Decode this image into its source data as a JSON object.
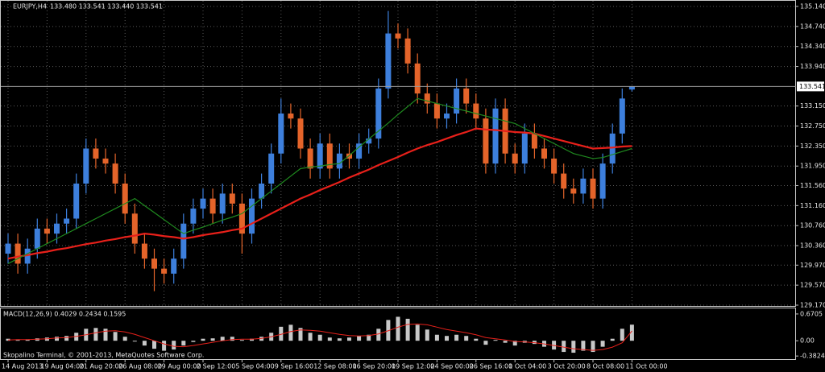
{
  "chart_data": [
    {
      "type": "candlestick",
      "title": "EURJPY,H4",
      "subtitle": "133.480 133.541 133.440 133.541",
      "categories": [
        "14 Aug 2013",
        null,
        null,
        null,
        "19 Aug 04:00",
        null,
        null,
        null,
        "21 Aug 20:00",
        null,
        null,
        null,
        "26 Aug 08:00",
        null,
        null,
        null,
        "29 Aug 00:00",
        null,
        null,
        null,
        "2 Sep 12:00",
        null,
        null,
        null,
        "5 Sep 04:00",
        null,
        null,
        null,
        "9 Sep 16:00",
        null,
        null,
        null,
        "12 Sep 08:00",
        null,
        null,
        null,
        "16 Sep 20:00",
        null,
        null,
        null,
        "19 Sep 12:00",
        null,
        null,
        null,
        "24 Sep 00:00",
        null,
        null,
        null,
        "26 Sep 16:00",
        null,
        null,
        null,
        "1 Oct 04:00",
        null,
        null,
        null,
        "3 Oct 20:00",
        null,
        null,
        null,
        "8 Oct 08:00",
        null,
        null,
        null,
        "11 Oct 00:00"
      ],
      "open": [
        130.2,
        130.4,
        130.0,
        130.3,
        130.7,
        130.6,
        130.8,
        130.9,
        131.6,
        132.3,
        132.1,
        132.0,
        131.6,
        131.0,
        130.4,
        130.1,
        129.9,
        129.8,
        130.1,
        130.8,
        131.1,
        131.3,
        131.0,
        131.4,
        131.2,
        130.6,
        131.3,
        131.6,
        132.2,
        133.0,
        132.9,
        132.3,
        131.9,
        132.4,
        131.9,
        132.2,
        132.1,
        132.4,
        132.5,
        133.5,
        134.6,
        134.5,
        134.0,
        133.4,
        133.2,
        132.9,
        133.0,
        133.5,
        133.2,
        132.9,
        132.0,
        133.1,
        132.2,
        132.0,
        132.6,
        132.3,
        132.1,
        131.8,
        131.5,
        131.4,
        131.7,
        131.3,
        132.0,
        132.6,
        133.48
      ],
      "high": [
        130.6,
        130.6,
        130.5,
        130.9,
        130.9,
        131.0,
        131.1,
        131.8,
        132.5,
        132.5,
        132.3,
        132.2,
        131.8,
        131.2,
        130.6,
        130.3,
        130.1,
        130.3,
        131.0,
        131.3,
        131.5,
        131.5,
        131.6,
        131.6,
        131.4,
        131.5,
        131.8,
        132.4,
        133.3,
        133.2,
        133.1,
        132.5,
        132.6,
        132.6,
        132.4,
        132.4,
        132.6,
        132.7,
        133.7,
        135.05,
        134.8,
        134.7,
        134.2,
        133.6,
        133.4,
        133.2,
        133.7,
        133.7,
        133.4,
        133.1,
        133.3,
        133.3,
        132.4,
        132.8,
        132.8,
        132.5,
        132.3,
        132.0,
        131.7,
        131.9,
        131.9,
        132.2,
        132.8,
        133.5,
        133.541
      ],
      "low": [
        130.0,
        129.8,
        129.8,
        130.1,
        130.4,
        130.4,
        130.6,
        130.7,
        131.4,
        131.9,
        131.8,
        131.4,
        130.8,
        130.2,
        129.9,
        129.45,
        129.6,
        129.6,
        129.9,
        130.6,
        130.9,
        130.8,
        130.8,
        131.0,
        130.2,
        130.4,
        131.1,
        131.4,
        132.0,
        132.7,
        132.1,
        131.7,
        131.7,
        131.7,
        131.7,
        131.9,
        131.9,
        132.2,
        132.3,
        133.3,
        134.3,
        133.8,
        133.2,
        133.0,
        132.7,
        132.7,
        132.8,
        133.0,
        132.7,
        131.8,
        131.8,
        132.0,
        131.8,
        131.8,
        132.1,
        131.9,
        131.6,
        131.3,
        131.2,
        131.2,
        131.1,
        131.1,
        131.8,
        132.4,
        133.44
      ],
      "close": [
        130.4,
        130.0,
        130.3,
        130.7,
        130.6,
        130.8,
        130.9,
        131.6,
        132.3,
        132.1,
        132.0,
        131.6,
        131.0,
        130.4,
        130.1,
        129.9,
        129.8,
        130.1,
        130.8,
        131.1,
        131.3,
        131.0,
        131.4,
        131.2,
        130.6,
        131.3,
        131.6,
        132.2,
        133.0,
        132.9,
        132.3,
        131.9,
        132.4,
        131.9,
        132.2,
        132.1,
        132.4,
        132.5,
        133.5,
        134.6,
        134.5,
        134.0,
        133.4,
        133.2,
        132.9,
        133.0,
        133.5,
        133.2,
        132.9,
        132.0,
        133.1,
        132.2,
        132.0,
        132.6,
        132.3,
        132.1,
        131.8,
        131.5,
        131.4,
        131.7,
        131.3,
        132.0,
        132.6,
        133.3,
        133.541
      ],
      "up_color": "#3d7fdc",
      "down_color": "#e4642a",
      "lines": [
        {
          "color": "#e8201a",
          "values": [
            130.1,
            130.14,
            130.17,
            130.21,
            130.24,
            130.28,
            130.31,
            130.35,
            130.39,
            130.42,
            130.46,
            130.49,
            130.53,
            130.56,
            130.6,
            130.58,
            130.55,
            130.53,
            130.5,
            130.53,
            130.57,
            130.6,
            130.63,
            130.67,
            130.7,
            130.8,
            130.9,
            131.0,
            131.1,
            131.2,
            131.3,
            131.38,
            131.47,
            131.55,
            131.63,
            131.72,
            131.8,
            131.88,
            131.97,
            132.05,
            132.13,
            132.22,
            132.3,
            132.37,
            132.43,
            132.5,
            132.57,
            132.63,
            132.7,
            132.68,
            132.67,
            132.65,
            132.63,
            132.62,
            132.6,
            132.55,
            132.5,
            132.45,
            132.4,
            132.35,
            132.3,
            132.31,
            132.32,
            132.34,
            132.35
          ]
        },
        {
          "color": "#1f8a1f",
          "values": [
            130.0,
            130.1,
            130.2,
            130.3,
            130.4,
            130.5,
            130.6,
            130.7,
            130.8,
            130.9,
            131.0,
            131.1,
            131.2,
            131.3,
            131.16,
            131.02,
            130.88,
            130.74,
            130.6,
            130.67,
            130.73,
            130.8,
            130.87,
            130.93,
            131.0,
            131.15,
            131.3,
            131.45,
            131.6,
            131.75,
            131.9,
            131.93,
            131.95,
            131.98,
            132.0,
            132.16,
            132.33,
            132.49,
            132.65,
            132.81,
            132.98,
            133.14,
            133.3,
            133.25,
            133.2,
            133.15,
            133.1,
            133.05,
            133.0,
            132.95,
            132.9,
            132.85,
            132.8,
            132.7,
            132.6,
            132.5,
            132.4,
            132.3,
            132.2,
            132.15,
            132.1,
            132.12,
            132.18,
            132.24,
            132.3
          ]
        }
      ],
      "last_price": 133.541,
      "ylim": [
        129.17,
        135.14
      ],
      "yticks": [
        {
          "value": 135.14,
          "label": "135.140"
        },
        {
          "value": 134.74,
          "label": "134.740"
        },
        {
          "value": 134.34,
          "label": "134.340"
        },
        {
          "value": 133.94,
          "label": "133.940"
        },
        {
          "value": 133.15,
          "label": "133.150"
        },
        {
          "value": 132.75,
          "label": "132.750"
        },
        {
          "value": 132.35,
          "label": "132.350"
        },
        {
          "value": 131.95,
          "label": "131.950"
        },
        {
          "value": 131.56,
          "label": "131.560"
        },
        {
          "value": 131.16,
          "label": "131.160"
        },
        {
          "value": 130.76,
          "label": "130.760"
        },
        {
          "value": 130.36,
          "label": "130.360"
        },
        {
          "value": 129.97,
          "label": "129.970"
        },
        {
          "value": 129.57,
          "label": "129.570"
        },
        {
          "value": 129.17,
          "label": "129.170"
        }
      ],
      "grid": true
    },
    {
      "type": "macd",
      "title": "MACD(12,26,9) 0.4029 0.2434 0.1595",
      "values": [
        0.05,
        0.02,
        0.03,
        0.06,
        0.08,
        0.1,
        0.12,
        0.2,
        0.3,
        0.32,
        0.3,
        0.22,
        0.1,
        -0.02,
        -0.12,
        -0.2,
        -0.25,
        -0.22,
        -0.12,
        -0.03,
        0.05,
        0.06,
        0.1,
        0.1,
        0.02,
        0.05,
        0.1,
        0.2,
        0.35,
        0.4,
        0.32,
        0.2,
        0.15,
        0.08,
        0.06,
        0.08,
        0.12,
        0.15,
        0.3,
        0.52,
        0.6,
        0.55,
        0.4,
        0.28,
        0.15,
        0.12,
        0.15,
        0.12,
        0.05,
        -0.1,
        0.02,
        -0.05,
        -0.12,
        -0.05,
        -0.08,
        -0.15,
        -0.22,
        -0.28,
        -0.3,
        -0.25,
        -0.28,
        -0.15,
        0.05,
        0.3,
        0.4029
      ],
      "color": "#c8c8c8",
      "signal": {
        "color": "#e8201a",
        "values": [
          0.02,
          0.03,
          0.03,
          0.04,
          0.05,
          0.07,
          0.08,
          0.11,
          0.15,
          0.2,
          0.24,
          0.25,
          0.22,
          0.16,
          0.08,
          0.0,
          -0.08,
          -0.14,
          -0.15,
          -0.12,
          -0.08,
          -0.04,
          0.0,
          0.03,
          0.04,
          0.04,
          0.06,
          0.1,
          0.16,
          0.23,
          0.27,
          0.26,
          0.24,
          0.2,
          0.16,
          0.13,
          0.12,
          0.13,
          0.17,
          0.25,
          0.34,
          0.41,
          0.42,
          0.4,
          0.34,
          0.28,
          0.24,
          0.2,
          0.15,
          0.08,
          0.05,
          0.02,
          -0.02,
          -0.03,
          -0.05,
          -0.08,
          -0.12,
          -0.16,
          -0.2,
          -0.22,
          -0.24,
          -0.22,
          -0.16,
          -0.05,
          0.2434
        ]
      },
      "ylim": [
        -0.48,
        0.81
      ],
      "yticks": [
        0.6705,
        {
          "value": 0,
          "label": "0.00"
        },
        -0.3824
      ]
    }
  ],
  "footer": "Skopalino Terminal, © 2001-2013, MetaQuotes Software Corp."
}
